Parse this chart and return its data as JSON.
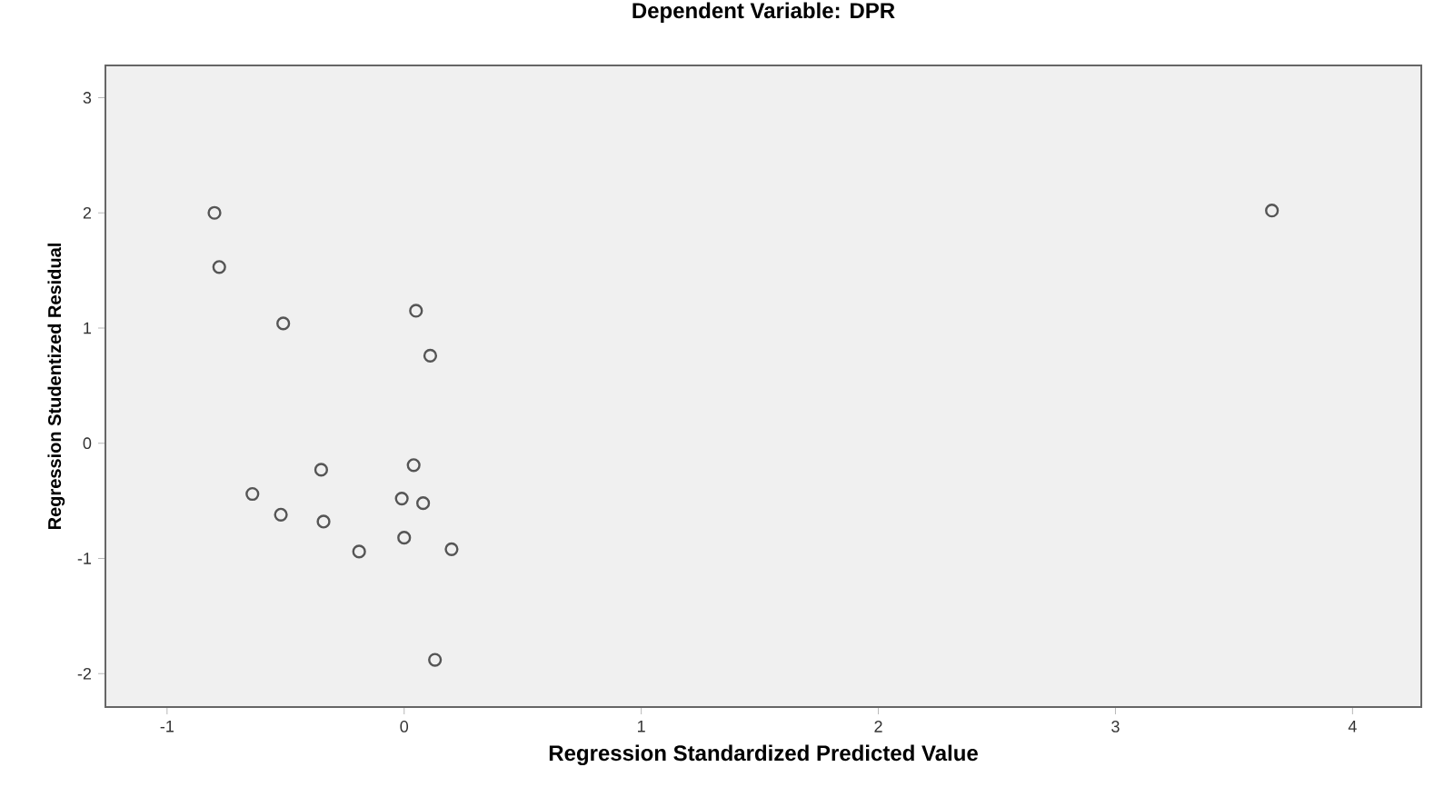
{
  "chart_data": {
    "type": "scatter",
    "title": "Dependent Variable: DPR",
    "xlabel": "Regression Standardized Predicted Value",
    "ylabel": "Regression Studentized Residual",
    "x": [
      -0.8,
      -0.78,
      -0.51,
      0.05,
      0.11,
      -0.64,
      -0.52,
      -0.35,
      -0.34,
      -0.19,
      0.04,
      -0.01,
      0.08,
      0.0,
      0.2,
      0.13,
      3.66
    ],
    "values": [
      2.0,
      1.53,
      1.04,
      1.15,
      0.76,
      -0.44,
      -0.62,
      -0.23,
      -0.68,
      -0.94,
      -0.19,
      -0.48,
      -0.52,
      -0.82,
      -0.92,
      -1.88,
      2.02
    ],
    "color": "#555555",
    "marker": "circle",
    "grid": false,
    "xlim": [
      -1.26,
      4.29
    ],
    "ylim": [
      -2.29,
      3.28
    ],
    "xticks": [
      -1,
      0,
      1,
      2,
      3,
      4
    ],
    "yticks": [
      -2,
      -1,
      0,
      1,
      2,
      3
    ]
  }
}
